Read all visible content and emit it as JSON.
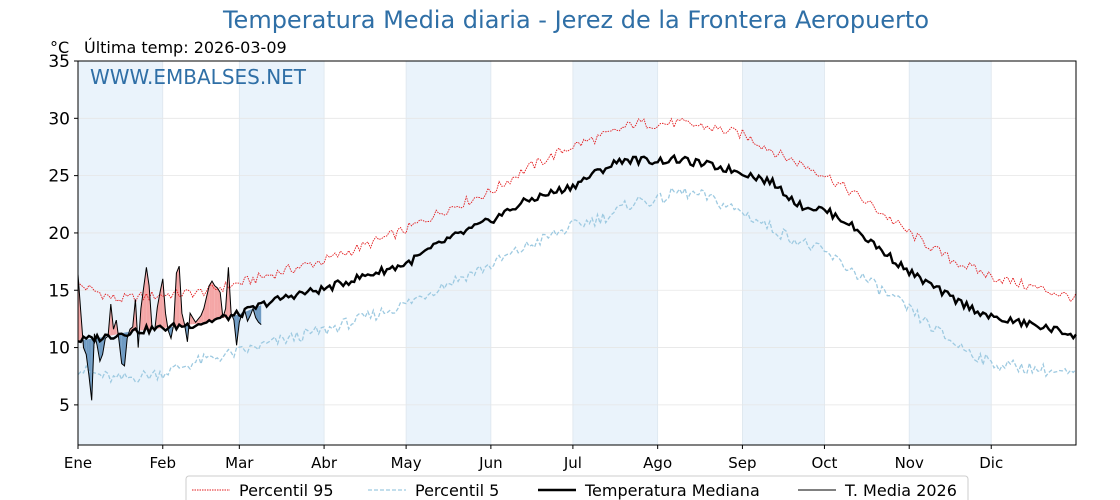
{
  "page": {
    "title": "Temperatura Media diaria - Jerez de la Frontera Aeropuerto",
    "unit_label": "°C",
    "subtitle": "Última temp: 2026-03-09",
    "watermark": "WWW.EMBALSES.NET"
  },
  "colors": {
    "p95": "#e31a1c",
    "p5": "#9ecae1",
    "median": "#000000",
    "current": "#000000",
    "above_fill": "#f4a6a6",
    "below_fill": "#6f9bc3",
    "month_band": "#eaf3fb",
    "title": "#2f6fa6"
  },
  "chart_data": {
    "type": "line",
    "ylim": [
      1.5,
      35
    ],
    "yticks": [
      5,
      10,
      15,
      20,
      25,
      30,
      35
    ],
    "month_ticks": [
      {
        "label": "Ene",
        "day": 1
      },
      {
        "label": "Feb",
        "day": 32
      },
      {
        "label": "Mar",
        "day": 60
      },
      {
        "label": "Abr",
        "day": 91
      },
      {
        "label": "May",
        "day": 121
      },
      {
        "label": "Jun",
        "day": 152
      },
      {
        "label": "Jul",
        "day": 182
      },
      {
        "label": "Ago",
        "day": 213
      },
      {
        "label": "Sep",
        "day": 244
      },
      {
        "label": "Oct",
        "day": 274
      },
      {
        "label": "Nov",
        "day": 305
      },
      {
        "label": "Dic",
        "day": 335
      }
    ],
    "xlim": [
      1,
      366
    ],
    "shaded_months": [
      "Ene",
      "Mar",
      "May",
      "Jul",
      "Sep",
      "Nov"
    ],
    "series": [
      {
        "name": "Percentil 95",
        "x": [
          1,
          15,
          32,
          45,
          60,
          75,
          91,
          105,
          121,
          135,
          152,
          165,
          182,
          195,
          205,
          213,
          220,
          230,
          244,
          258,
          274,
          290,
          305,
          320,
          335,
          350,
          366
        ],
        "values": [
          15.5,
          14.2,
          14.6,
          14.8,
          15.6,
          16.6,
          17.6,
          18.8,
          20.3,
          22.0,
          23.6,
          25.6,
          27.6,
          28.6,
          29.6,
          29.5,
          29.6,
          29.3,
          28.6,
          26.8,
          25.1,
          22.6,
          20.0,
          17.7,
          16.2,
          15.3,
          14.3
        ]
      },
      {
        "name": "Percentil 5",
        "x": [
          1,
          15,
          32,
          45,
          60,
          75,
          91,
          105,
          121,
          135,
          152,
          165,
          182,
          195,
          205,
          213,
          220,
          230,
          244,
          258,
          274,
          290,
          305,
          320,
          335,
          350,
          366
        ],
        "values": [
          8.1,
          7.2,
          7.8,
          8.8,
          9.6,
          10.6,
          11.5,
          12.5,
          13.8,
          15.5,
          17.2,
          18.8,
          20.6,
          21.5,
          22.8,
          22.8,
          23.6,
          23.2,
          21.8,
          20.0,
          18.3,
          15.8,
          13.3,
          10.6,
          8.6,
          8.2,
          7.6
        ]
      },
      {
        "name": "Temperatura Mediana",
        "x": [
          1,
          10,
          20,
          32,
          45,
          60,
          70,
          80,
          91,
          105,
          121,
          135,
          152,
          165,
          182,
          190,
          200,
          213,
          220,
          230,
          244,
          255,
          265,
          274,
          282,
          290,
          305,
          320,
          335,
          350,
          366
        ],
        "values": [
          10.6,
          10.9,
          11.4,
          11.7,
          12.1,
          12.9,
          13.9,
          14.6,
          15.1,
          16.2,
          17.3,
          19.3,
          21.1,
          22.8,
          24.1,
          25.2,
          26.4,
          26.3,
          26.4,
          26.0,
          25.3,
          24.4,
          22.4,
          22.0,
          21.0,
          19.4,
          16.6,
          14.4,
          12.6,
          12.0,
          11.1
        ]
      },
      {
        "name": "T. Media 2026",
        "x": [
          1,
          2,
          3,
          4,
          5,
          6,
          7,
          8,
          9,
          10,
          11,
          12,
          13,
          14,
          15,
          16,
          17,
          18,
          19,
          20,
          21,
          22,
          23,
          24,
          25,
          26,
          27,
          28,
          29,
          30,
          31,
          32,
          33,
          34,
          35,
          36,
          37,
          38,
          39,
          40,
          41,
          42,
          43,
          44,
          45,
          46,
          47,
          48,
          49,
          50,
          51,
          52,
          53,
          54,
          55,
          56,
          57,
          58,
          59,
          60,
          61,
          62,
          63,
          64,
          65,
          66,
          67,
          68
        ],
        "values": [
          16.4,
          13.2,
          10.0,
          9.4,
          7.6,
          5.4,
          11.2,
          10.2,
          8.8,
          9.4,
          10.8,
          11.0,
          13.8,
          11.6,
          12.4,
          10.6,
          8.6,
          8.4,
          10.8,
          11.6,
          11.8,
          14.2,
          10.0,
          13.4,
          15.2,
          17.0,
          15.4,
          12.0,
          11.4,
          13.5,
          14.8,
          16.0,
          13.0,
          11.5,
          10.8,
          12.0,
          16.5,
          17.1,
          13.0,
          12.0,
          10.5,
          13.0,
          12.6,
          12.2,
          12.5,
          12.8,
          13.4,
          14.4,
          15.4,
          15.8,
          15.4,
          15.2,
          14.8,
          12.6,
          13.4,
          17.0,
          13.0,
          12.4,
          10.2,
          12.2,
          13.0,
          13.2,
          12.3,
          12.8,
          13.4,
          12.6,
          12.2,
          12.0
        ]
      }
    ],
    "legend": {
      "placement": "bottom-center",
      "entries": [
        "Percentil 95",
        "Percentil 5",
        "Temperatura Mediana",
        "T. Media 2026"
      ]
    }
  }
}
